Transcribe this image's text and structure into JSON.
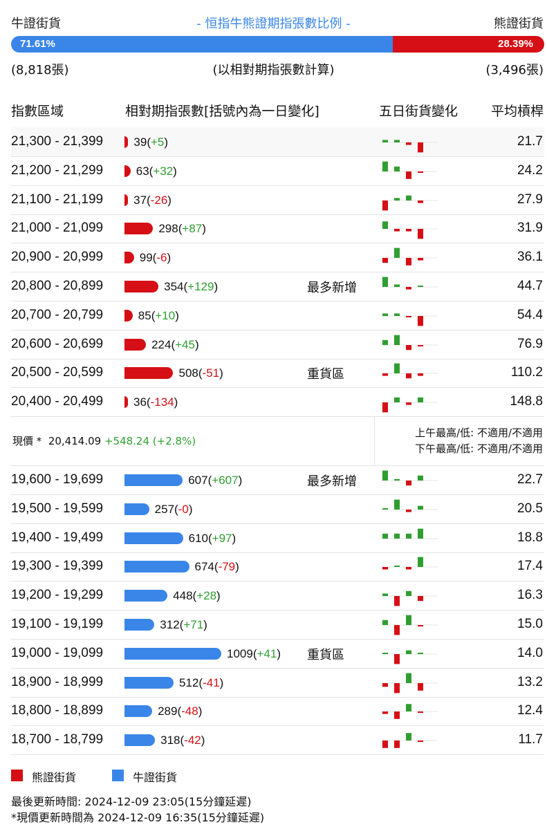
{
  "header": {
    "bull_label": "牛證街貨",
    "title": "- 恒指牛熊證期指張數比例 -",
    "bear_label": "熊證街貨",
    "bull_pct": "71.61%",
    "bear_pct": "28.39%",
    "bull_ratio": 0.7161,
    "bull_count": "(8,818張)",
    "note": "(以相對期指張數計算)",
    "bear_count": "(3,496張)"
  },
  "columns": {
    "range": "指數區域",
    "contracts": "相對期指張數[括號內為一日變化]",
    "change5d": "五日街貨變化",
    "avg": "平均槓桿"
  },
  "colors": {
    "bear": "#d50f15",
    "bull": "#3a86e8",
    "up": "#2f9e30"
  },
  "bear_rows": [
    {
      "range": "21,300 - 21,399",
      "count": "39",
      "chg": "+5",
      "tag": "",
      "avg": "21.7",
      "mini": [
        1,
        1,
        -1,
        -4
      ]
    },
    {
      "range": "21,200 - 21,299",
      "count": "63",
      "chg": "+32",
      "tag": "",
      "avg": "24.2",
      "mini": [
        4,
        2,
        -3,
        -0.5
      ]
    },
    {
      "range": "21,100 - 21,199",
      "count": "37",
      "chg": "-26",
      "tag": "",
      "avg": "27.9",
      "mini": [
        -4,
        1,
        2,
        -1
      ]
    },
    {
      "range": "21,000 - 21,099",
      "count": "298",
      "chg": "+87",
      "tag": "",
      "avg": "31.9",
      "mini": [
        3,
        -1,
        -1,
        -4
      ]
    },
    {
      "range": "20,900 - 20,999",
      "count": "99",
      "chg": "-6",
      "tag": "",
      "avg": "36.1",
      "mini": [
        -2,
        4,
        -3,
        -1
      ]
    },
    {
      "range": "20,800 - 20,899",
      "count": "354",
      "chg": "+129",
      "tag": "最多新增",
      "avg": "44.7",
      "mini": [
        4,
        1,
        -1,
        0.5
      ]
    },
    {
      "range": "20,700 - 20,799",
      "count": "85",
      "chg": "+10",
      "tag": "",
      "avg": "54.4",
      "mini": [
        1,
        1,
        -0.5,
        -4
      ]
    },
    {
      "range": "20,600 - 20,699",
      "count": "224",
      "chg": "+45",
      "tag": "",
      "avg": "76.9",
      "mini": [
        2,
        4,
        -2,
        -0.5
      ]
    },
    {
      "range": "20,500 - 20,599",
      "count": "508",
      "chg": "-51",
      "tag": "重貨區",
      "avg": "110.2",
      "mini": [
        -1,
        4,
        -2,
        -1
      ]
    },
    {
      "range": "20,400 - 20,499",
      "count": "36",
      "chg": "-134",
      "tag": "",
      "avg": "148.8",
      "mini": [
        -4,
        2,
        -1,
        2
      ]
    }
  ],
  "current": {
    "label": "現價 *",
    "value": "20,414.09",
    "chg": "+548.24 (+2.8%)",
    "am": "上午最高/低: 不適用/不適用",
    "pm": "下午最高/低: 不適用/不適用"
  },
  "bull_rows": [
    {
      "range": "19,600 - 19,699",
      "count": "607",
      "chg": "+607",
      "tag": "最多新增",
      "avg": "22.7",
      "mini": [
        4,
        0,
        -2,
        2
      ]
    },
    {
      "range": "19,500 - 19,599",
      "count": "257",
      "chg": "-0",
      "tag": "",
      "avg": "20.5",
      "mini": [
        0.5,
        4,
        -1,
        1.5
      ]
    },
    {
      "range": "19,400 - 19,499",
      "count": "610",
      "chg": "+97",
      "tag": "",
      "avg": "18.8",
      "mini": [
        2,
        2,
        2,
        4
      ]
    },
    {
      "range": "19,300 - 19,399",
      "count": "674",
      "chg": "-79",
      "tag": "",
      "avg": "17.4",
      "mini": [
        -1,
        0.5,
        -1,
        4
      ]
    },
    {
      "range": "19,200 - 19,299",
      "count": "448",
      "chg": "+28",
      "tag": "",
      "avg": "16.3",
      "mini": [
        1,
        -4,
        2,
        -2
      ]
    },
    {
      "range": "19,100 - 19,199",
      "count": "312",
      "chg": "+71",
      "tag": "",
      "avg": "15.0",
      "mini": [
        2,
        -4,
        4,
        -0.5
      ]
    },
    {
      "range": "19,000 - 19,099",
      "count": "1009",
      "chg": "+41",
      "tag": "重貨區",
      "avg": "14.0",
      "mini": [
        0.5,
        -4,
        1.5,
        0.3
      ]
    },
    {
      "range": "18,900 - 18,999",
      "count": "512",
      "chg": "-41",
      "tag": "",
      "avg": "13.2",
      "mini": [
        -1.5,
        -4,
        4,
        -3
      ]
    },
    {
      "range": "18,800 - 18,899",
      "count": "289",
      "chg": "-48",
      "tag": "",
      "avg": "12.4",
      "mini": [
        -1,
        -3,
        3,
        -0.5
      ]
    },
    {
      "range": "18,700 - 18,799",
      "count": "318",
      "chg": "-42",
      "tag": "",
      "avg": "11.7",
      "mini": [
        -3,
        -3,
        3,
        -0.5
      ]
    }
  ],
  "legend": {
    "bear": "熊證街貨",
    "bull": "牛證街貨"
  },
  "footer": {
    "updated": "最後更新時間: 2024-12-09 23:05(15分鐘延遲)",
    "price_updated": "*現價更新時間為 2024-12-09 16:35(15分鐘延遲)"
  }
}
